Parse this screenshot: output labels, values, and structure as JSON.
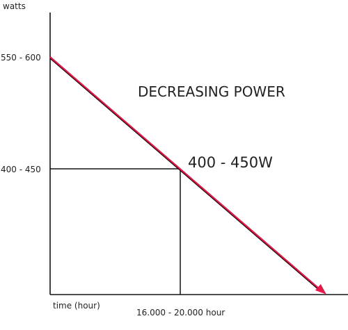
{
  "chart_data": {
    "type": "line",
    "title": "DECREASING POWER",
    "ylabel": "watts",
    "xlabel": "time (hour)",
    "y_ticks": [
      "550 - 600",
      "400 - 450"
    ],
    "x_ticks": [
      "16.000 - 20.000 hour"
    ],
    "annotation": "400 - 450W",
    "series": [
      {
        "x": [
          0,
          18000
        ],
        "y": [
          575,
          425
        ]
      }
    ],
    "grid": false,
    "colors": {
      "line": "#e8194a",
      "axis": "#111111",
      "guide": "#111111"
    }
  }
}
